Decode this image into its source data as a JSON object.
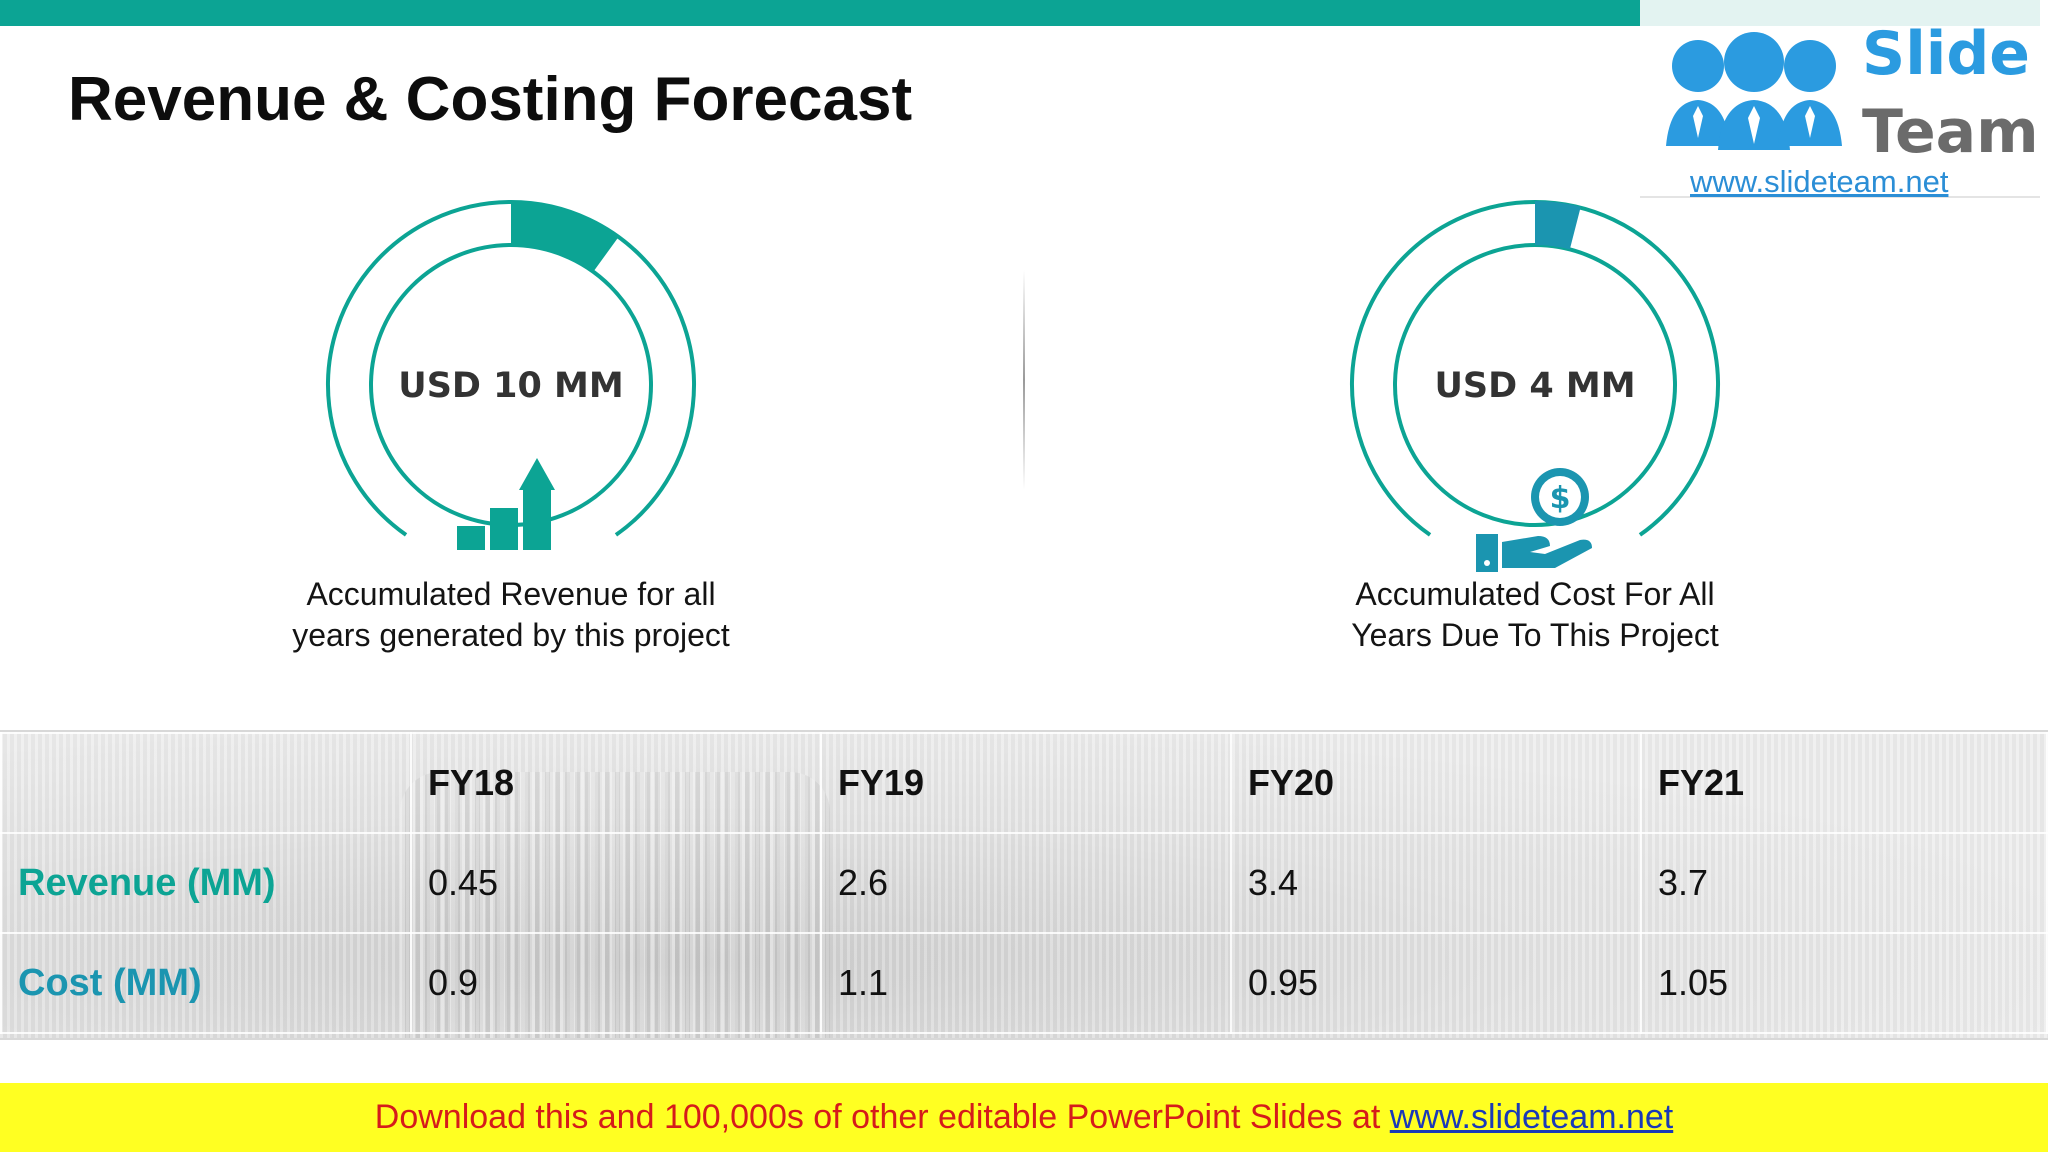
{
  "slide": {
    "title": "Revenue & Costing Forecast"
  },
  "logo": {
    "word_top": "Slide",
    "word_bottom": "Team",
    "url": "www.slideteam.net"
  },
  "metrics": [
    {
      "value_label": "USD 10 MM",
      "caption_line1": "Accumulated Revenue for all",
      "caption_line2": "years generated by this project",
      "icon": "bar-chart-growth-icon",
      "accent": "#0ca494",
      "highlight_fraction": 0.1
    },
    {
      "value_label": "USD 4 MM",
      "caption_line1": "Accumulated Cost For All",
      "caption_line2": "Years Due To This Project",
      "icon": "dollar-hand-icon",
      "accent": "#1b95b0",
      "highlight_fraction": 0.04
    }
  ],
  "table": {
    "columns": [
      "",
      "FY18",
      "FY19",
      "FY20",
      "FY21"
    ],
    "rows": [
      {
        "label": "Revenue (MM)",
        "values": [
          "0.45",
          "2.6",
          "3.4",
          "3.7"
        ]
      },
      {
        "label": "Cost (MM)",
        "values": [
          "0.9",
          "1.1",
          "0.95",
          "1.05"
        ]
      }
    ]
  },
  "banner": {
    "text": "Download this and 100,000s of other editable PowerPoint Slides at ",
    "link": "www.slideteam.net"
  },
  "colors": {
    "teal": "#0ca494",
    "blue_teal": "#1b95b0",
    "banner_bg": "#ffff22",
    "banner_text": "#d51b1b"
  }
}
